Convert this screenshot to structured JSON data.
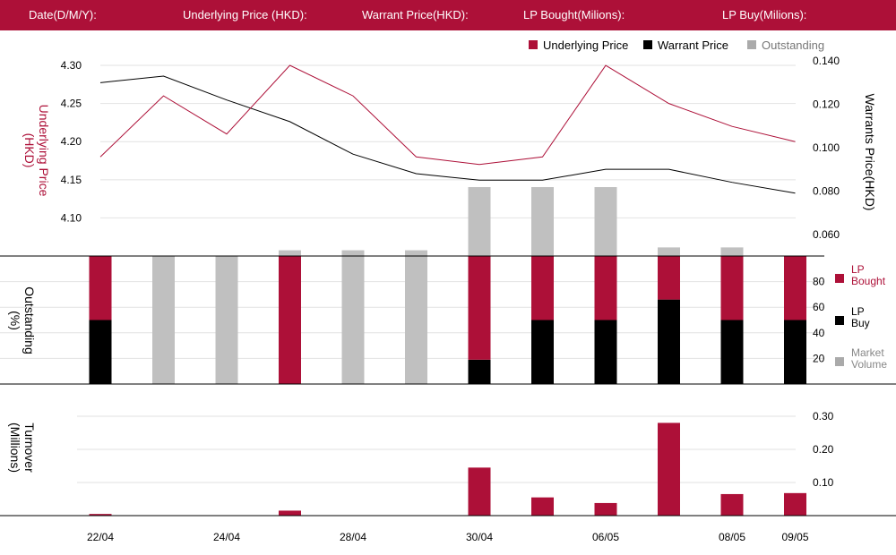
{
  "header": {
    "date": "Date(D/M/Y):",
    "underlying_price": "Underlying Price (HKD):",
    "warrant_price": "Warrant  Price(HKD):",
    "lp_bought": "LP Bought(Milions):",
    "lp_buy": "LP Buy(Milions):"
  },
  "colors": {
    "header_bg": "#ad1038",
    "underlying": "#ad1038",
    "warrant": "#000000",
    "outstanding": "#c0c0c0",
    "lp_bought": "#ad1038",
    "lp_buy": "#000000",
    "market_volume": "#aaaaaa",
    "turnover": "#ad1038"
  },
  "chart_data": [
    {
      "type": "line",
      "x": [
        "22/04",
        "",
        "24/04",
        "",
        "28/04",
        "",
        "30/04",
        "",
        "06/05",
        "",
        "08/05",
        "09/05"
      ],
      "series": [
        {
          "name": "Underlying Price",
          "axis": "left",
          "values": [
            4.18,
            4.26,
            4.21,
            4.3,
            4.26,
            4.18,
            4.17,
            4.18,
            4.3,
            4.25,
            4.22,
            4.2
          ]
        },
        {
          "name": "Warrant  Price",
          "axis": "right",
          "values": [
            0.13,
            0.133,
            0.122,
            0.112,
            0.097,
            0.088,
            0.085,
            0.085,
            0.09,
            0.09,
            0.084,
            0.079
          ]
        },
        {
          "name": "Outstanding",
          "axis": "bar",
          "values": [
            0,
            0,
            0,
            4,
            4,
            4,
            48,
            48,
            48,
            6,
            6,
            0
          ]
        }
      ],
      "legend": [
        "Underlying Price",
        "Warrant  Price",
        "Outstanding"
      ],
      "legend_position": "top-right",
      "ylabel_left": "Underlying Price\n(HKD)",
      "ylabel_right": "Warrants  Price(HKD)",
      "yticks_left": [
        "4.30",
        "4.25",
        "4.20",
        "4.15",
        "4.10"
      ],
      "yticks_right": [
        "0.140",
        "0.120",
        "0.100",
        "0.080",
        "0.060"
      ],
      "ylim_left": [
        4.05,
        4.32
      ],
      "ylim_right": [
        0.05,
        0.145
      ]
    },
    {
      "type": "bar",
      "stacked": true,
      "x": [
        "22/04",
        "",
        "24/04",
        "",
        "28/04",
        "",
        "30/04",
        "",
        "06/05",
        "",
        "08/05",
        "09/05"
      ],
      "series": [
        {
          "name": "LP\nBought",
          "values": [
            50,
            0,
            0,
            100,
            0,
            0,
            81,
            50,
            50,
            34,
            50,
            50
          ]
        },
        {
          "name": "LP\nBuy",
          "values": [
            50,
            0,
            0,
            0,
            0,
            0,
            19,
            50,
            50,
            66,
            50,
            50
          ]
        },
        {
          "name": "Market\nVolume",
          "values": [
            0,
            100,
            100,
            0,
            100,
            100,
            0,
            0,
            0,
            0,
            0,
            0
          ]
        }
      ],
      "ylabel": "Outstanding\n(%)",
      "yticks": [
        "80",
        "60",
        "40",
        "20"
      ],
      "ylim": [
        0,
        100
      ],
      "legend_position": "right"
    },
    {
      "type": "bar",
      "x": [
        "22/04",
        "",
        "24/04",
        "",
        "28/04",
        "",
        "30/04",
        "",
        "06/05",
        "",
        "08/05",
        "09/05"
      ],
      "series": [
        {
          "name": "Turnover",
          "values": [
            0.005,
            0,
            0,
            0.015,
            0,
            0,
            0.145,
            0.055,
            0.038,
            0.28,
            0.065,
            0.068
          ]
        }
      ],
      "ylabel": "Turnover\n(Millions)",
      "yticks": [
        "0.30",
        "0.20",
        "0.10"
      ],
      "ylim": [
        0,
        0.32
      ]
    }
  ]
}
